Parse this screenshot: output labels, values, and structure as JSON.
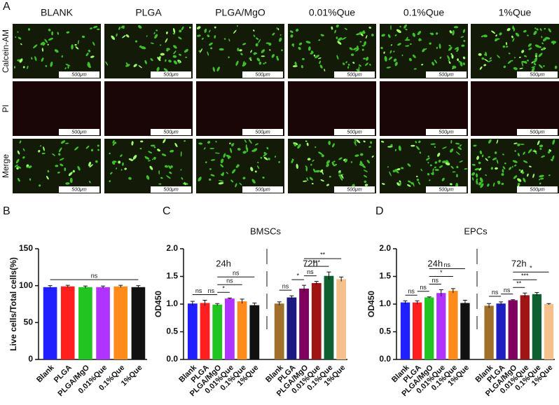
{
  "panel_a": {
    "panel_label": "A",
    "columns": [
      "BLANK",
      "PLGA",
      "PLGA/MgO",
      "0.01%Que",
      "0.1%Que",
      "1%Que"
    ],
    "rows": [
      "Calcein-AM",
      "PI",
      "Merge"
    ],
    "scale_bar": "500μm"
  },
  "chart_data": [
    {
      "type": "bar",
      "panel_label": "B",
      "y_label": "Live cells/Total cells(%)",
      "categories": [
        "Blank",
        "PLGA",
        "PLGA/MgO",
        "0.01%Que",
        "0.1%Que",
        "1%Que"
      ],
      "series": [
        {
          "values": [
            98,
            99,
            98,
            98,
            99,
            98
          ],
          "errors": [
            2,
            1.5,
            1.5,
            1.5,
            1.5,
            2
          ],
          "colors": [
            "#1f1fff",
            "#ff1f1f",
            "#22c422",
            "#b133ff",
            "#ff8c1a",
            "#111111"
          ]
        }
      ],
      "ylim": [
        0,
        150
      ],
      "yticks": [
        0,
        50,
        100,
        150
      ],
      "annotations": [
        {
          "series": 0,
          "between": [
            0,
            5
          ],
          "label": "ns"
        }
      ]
    },
    {
      "type": "bar",
      "panel_label": "C",
      "title": "BMSCs",
      "y_label": "OD450",
      "categories": [
        "Blank",
        "PLGA",
        "PLGA/MgO",
        "0.01%Que",
        "0.1%Que",
        "1%Que"
      ],
      "series": [
        {
          "name": "24h",
          "values": [
            1.01,
            1.02,
            0.99,
            1.1,
            1.05,
            0.98
          ],
          "errors": [
            0.04,
            0.05,
            0.02,
            0.01,
            0.04,
            0.04
          ],
          "colors": [
            "#1f1fff",
            "#ff1f1f",
            "#22c422",
            "#b133ff",
            "#ff8c1a",
            "#111111"
          ]
        },
        {
          "name": "72h",
          "values": [
            1.01,
            1.12,
            1.28,
            1.38,
            1.51,
            1.45
          ],
          "errors": [
            0.03,
            0.03,
            0.06,
            0.03,
            0.07,
            0.04
          ],
          "colors": [
            "#a0702a",
            "#1a1a80",
            "#800060",
            "#a01414",
            "#0f6030",
            "#f5c08c"
          ]
        }
      ],
      "ylim": [
        0,
        2
      ],
      "yticks": [
        {
          "value": 0,
          "label": "0.0"
        },
        0.5,
        {
          "value": 1,
          "label": "1.0"
        },
        1.5,
        {
          "value": 2,
          "label": "2.0"
        }
      ],
      "annotations": [
        {
          "series": 0,
          "between": [
            0,
            1
          ],
          "label": "ns"
        },
        {
          "series": 0,
          "between": [
            1,
            2
          ],
          "label": "ns"
        },
        {
          "series": 0,
          "between": [
            2,
            3
          ],
          "label": "*"
        },
        {
          "series": 0,
          "between": [
            2,
            4
          ],
          "label": "ns"
        },
        {
          "series": 0,
          "between": [
            2,
            5
          ],
          "label": "ns"
        },
        {
          "series": 1,
          "between": [
            0,
            1
          ],
          "label": "ns"
        },
        {
          "series": 1,
          "between": [
            1,
            2
          ],
          "label": "*"
        },
        {
          "series": 1,
          "between": [
            2,
            3
          ],
          "label": "ns"
        },
        {
          "series": 1,
          "between": [
            2,
            4
          ],
          "label": "***"
        },
        {
          "series": 1,
          "between": [
            2,
            5
          ],
          "label": "**"
        }
      ]
    },
    {
      "type": "bar",
      "panel_label": "D",
      "title": "EPCs",
      "y_label": "OD450",
      "categories": [
        "Blank",
        "PLGA",
        "PLGA/MgO",
        "0.01%Que",
        "0.1%Que",
        "1%Que"
      ],
      "series": [
        {
          "name": "24h",
          "values": [
            1.03,
            1.03,
            1.12,
            1.2,
            1.24,
            1.02
          ],
          "errors": [
            0.03,
            0.03,
            0.01,
            0.06,
            0.04,
            0.05
          ],
          "colors": [
            "#1f1fff",
            "#ff1f1f",
            "#22c422",
            "#b133ff",
            "#ff8c1a",
            "#111111"
          ]
        },
        {
          "name": "72h",
          "values": [
            0.97,
            1.01,
            1.07,
            1.16,
            1.18,
            1.0
          ],
          "errors": [
            0.04,
            0.03,
            0.01,
            0.04,
            0.03,
            0.01
          ],
          "colors": [
            "#a0702a",
            "#1f1fbf",
            "#800060",
            "#a01414",
            "#0f6030",
            "#f5c08c"
          ]
        }
      ],
      "ylim": [
        0,
        2
      ],
      "yticks": [
        {
          "value": 0,
          "label": "0.0"
        },
        0.5,
        {
          "value": 1,
          "label": "1.0"
        },
        1.5,
        {
          "value": 2,
          "label": "2.0"
        }
      ],
      "annotations": [
        {
          "series": 0,
          "between": [
            0,
            1
          ],
          "label": "ns"
        },
        {
          "series": 0,
          "between": [
            1,
            2
          ],
          "label": "ns"
        },
        {
          "series": 0,
          "between": [
            2,
            3
          ],
          "label": "ns"
        },
        {
          "series": 0,
          "between": [
            2,
            4
          ],
          "label": "*"
        },
        {
          "series": 0,
          "between": [
            2,
            5
          ],
          "label": "ns"
        },
        {
          "series": 1,
          "between": [
            0,
            1
          ],
          "label": "ns"
        },
        {
          "series": 1,
          "between": [
            1,
            2
          ],
          "label": "ns"
        },
        {
          "series": 1,
          "between": [
            2,
            3
          ],
          "label": "**"
        },
        {
          "series": 1,
          "between": [
            2,
            4
          ],
          "label": "***"
        },
        {
          "series": 1,
          "between": [
            2,
            5
          ],
          "label": "*"
        }
      ]
    }
  ]
}
